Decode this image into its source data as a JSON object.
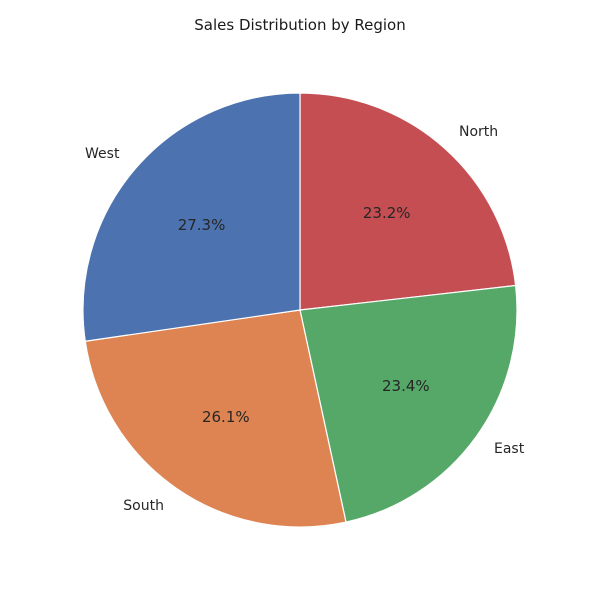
{
  "chart_data": {
    "type": "pie",
    "title": "Sales Distribution by Region",
    "categories": [
      "North",
      "East",
      "South",
      "West"
    ],
    "values": [
      23.2,
      23.4,
      26.1,
      27.3
    ],
    "value_labels": [
      "23.2%",
      "23.4%",
      "26.1%",
      "27.3%"
    ],
    "colors": [
      "#c44e52",
      "#55a868",
      "#dd8452",
      "#4c72b0"
    ],
    "start_angle_deg": 90,
    "direction": "clockwise",
    "legend": "none"
  }
}
